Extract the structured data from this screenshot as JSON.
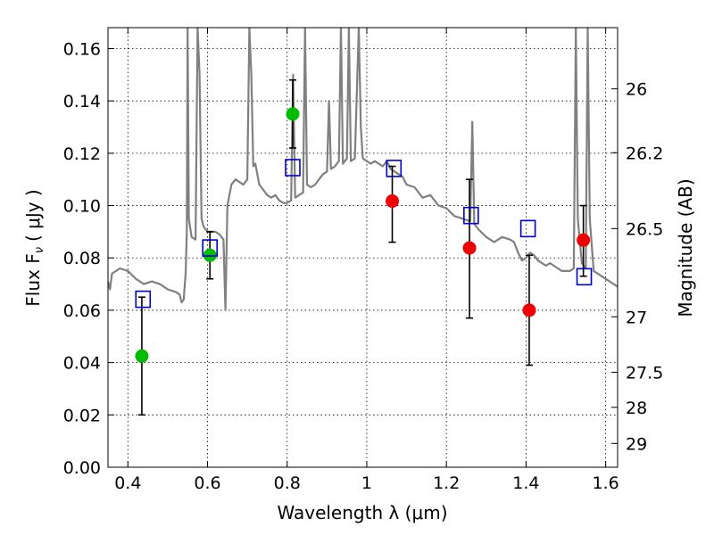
{
  "chart_data": {
    "type": "scatter",
    "xlabel": "Wavelength  λ (μm)",
    "ylabel": "Flux  F",
    "ylabel_sub": "ν",
    "ylabel_unit": "(  μJy )",
    "ylabel_right": "Magnitude (AB)",
    "xlim": [
      0.35,
      1.63
    ],
    "ylim": [
      0.0,
      0.168
    ],
    "grid": true,
    "x_ticks": [
      0.4,
      0.6,
      0.8,
      1.0,
      1.2,
      1.4,
      1.6
    ],
    "x_tick_labels": [
      "0.4",
      "0.6",
      "0.8",
      "1",
      "1.2",
      "1.4",
      "1.6"
    ],
    "y_ticks": [
      0.0,
      0.02,
      0.04,
      0.06,
      0.08,
      0.1,
      0.12,
      0.14,
      0.16
    ],
    "y_tick_labels": [
      "0.00",
      "0.02",
      "0.04",
      "0.06",
      "0.08",
      "0.10",
      "0.12",
      "0.14",
      "0.16"
    ],
    "right_ticks": [
      {
        "label": "26",
        "flux": 0.1446
      },
      {
        "label": "26.2",
        "flux": 0.1202
      },
      {
        "label": "26.5",
        "flux": 0.0912
      },
      {
        "label": "27",
        "flux": 0.0575
      },
      {
        "label": "27.5",
        "flux": 0.0363
      },
      {
        "label": "28",
        "flux": 0.0229
      },
      {
        "label": "29",
        "flux": 0.0091
      }
    ],
    "colors": {
      "spectrum": "#808080",
      "green": "#00bb00",
      "red": "#ee0000",
      "model_box": "#0000cc",
      "errorbar": "#000000"
    },
    "series": [
      {
        "type": "errorbar",
        "color": "green",
        "points": [
          {
            "x": 0.435,
            "y": 0.0425,
            "lo": 0.02,
            "hi": 0.065
          },
          {
            "x": 0.606,
            "y": 0.081,
            "lo": 0.072,
            "hi": 0.09
          },
          {
            "x": 0.814,
            "y": 0.135,
            "lo": 0.122,
            "hi": 0.148
          }
        ]
      },
      {
        "type": "errorbar",
        "color": "red",
        "points": [
          {
            "x": 1.064,
            "y": 0.1017,
            "lo": 0.086,
            "hi": 0.115
          },
          {
            "x": 1.258,
            "y": 0.0838,
            "lo": 0.057,
            "hi": 0.11
          },
          {
            "x": 1.408,
            "y": 0.06,
            "lo": 0.039,
            "hi": 0.081
          },
          {
            "x": 1.544,
            "y": 0.0868,
            "lo": 0.073,
            "hi": 0.1
          }
        ]
      },
      {
        "type": "model_photometry",
        "color": "model_box",
        "points": [
          {
            "x": 0.438,
            "y": 0.0642
          },
          {
            "x": 0.606,
            "y": 0.0838
          },
          {
            "x": 0.814,
            "y": 0.1145
          },
          {
            "x": 1.068,
            "y": 0.1142
          },
          {
            "x": 1.262,
            "y": 0.0962
          },
          {
            "x": 1.405,
            "y": 0.0912
          },
          {
            "x": 1.546,
            "y": 0.0728
          }
        ]
      },
      {
        "type": "spectrum",
        "color": "spectrum",
        "points": [
          [
            0.35,
            0.071
          ],
          [
            0.355,
            0.068
          ],
          [
            0.36,
            0.074
          ],
          [
            0.38,
            0.076
          ],
          [
            0.4,
            0.075
          ],
          [
            0.42,
            0.072
          ],
          [
            0.44,
            0.07
          ],
          [
            0.46,
            0.071
          ],
          [
            0.48,
            0.07
          ],
          [
            0.5,
            0.068
          ],
          [
            0.52,
            0.067
          ],
          [
            0.53,
            0.066
          ],
          [
            0.535,
            0.063
          ],
          [
            0.54,
            0.064
          ],
          [
            0.545,
            0.074
          ],
          [
            0.548,
            0.09
          ],
          [
            0.55,
            0.168
          ],
          [
            0.553,
            0.095
          ],
          [
            0.56,
            0.088
          ],
          [
            0.57,
            0.087
          ],
          [
            0.575,
            0.168
          ],
          [
            0.58,
            0.15
          ],
          [
            0.585,
            0.095
          ],
          [
            0.59,
            0.092
          ],
          [
            0.6,
            0.09
          ],
          [
            0.62,
            0.09
          ],
          [
            0.63,
            0.089
          ],
          [
            0.64,
            0.087
          ],
          [
            0.645,
            0.06
          ],
          [
            0.65,
            0.1
          ],
          [
            0.66,
            0.108
          ],
          [
            0.67,
            0.11
          ],
          [
            0.68,
            0.109
          ],
          [
            0.69,
            0.108
          ],
          [
            0.7,
            0.11
          ],
          [
            0.705,
            0.168
          ],
          [
            0.71,
            0.15
          ],
          [
            0.715,
            0.115
          ],
          [
            0.72,
            0.116
          ],
          [
            0.73,
            0.108
          ],
          [
            0.74,
            0.106
          ],
          [
            0.75,
            0.104
          ],
          [
            0.76,
            0.103
          ],
          [
            0.77,
            0.104
          ],
          [
            0.78,
            0.102
          ],
          [
            0.79,
            0.101
          ],
          [
            0.8,
            0.101
          ],
          [
            0.81,
            0.102
          ],
          [
            0.815,
            0.15
          ],
          [
            0.82,
            0.103
          ],
          [
            0.83,
            0.104
          ],
          [
            0.84,
            0.105
          ],
          [
            0.845,
            0.168
          ],
          [
            0.85,
            0.108
          ],
          [
            0.86,
            0.107
          ],
          [
            0.87,
            0.108
          ],
          [
            0.88,
            0.11
          ],
          [
            0.89,
            0.112
          ],
          [
            0.9,
            0.113
          ],
          [
            0.905,
            0.14
          ],
          [
            0.91,
            0.114
          ],
          [
            0.92,
            0.115
          ],
          [
            0.93,
            0.117
          ],
          [
            0.935,
            0.168
          ],
          [
            0.94,
            0.116
          ],
          [
            0.95,
            0.118
          ],
          [
            0.955,
            0.168
          ],
          [
            0.96,
            0.117
          ],
          [
            0.97,
            0.118
          ],
          [
            0.98,
            0.168
          ],
          [
            0.985,
            0.13
          ],
          [
            0.99,
            0.118
          ],
          [
            1.0,
            0.117
          ],
          [
            1.01,
            0.116
          ],
          [
            1.02,
            0.117
          ],
          [
            1.03,
            0.116
          ],
          [
            1.04,
            0.115
          ],
          [
            1.05,
            0.117
          ],
          [
            1.06,
            0.114
          ],
          [
            1.07,
            0.113
          ],
          [
            1.08,
            0.112
          ],
          [
            1.09,
            0.111
          ],
          [
            1.1,
            0.108
          ],
          [
            1.12,
            0.107
          ],
          [
            1.14,
            0.103
          ],
          [
            1.16,
            0.104
          ],
          [
            1.17,
            0.102
          ],
          [
            1.18,
            0.1
          ],
          [
            1.2,
            0.099
          ],
          [
            1.22,
            0.096
          ],
          [
            1.24,
            0.095
          ],
          [
            1.26,
            0.094
          ],
          [
            1.265,
            0.132
          ],
          [
            1.27,
            0.093
          ],
          [
            1.28,
            0.091
          ],
          [
            1.3,
            0.088
          ],
          [
            1.32,
            0.086
          ],
          [
            1.34,
            0.088
          ],
          [
            1.36,
            0.087
          ],
          [
            1.37,
            0.086
          ],
          [
            1.38,
            0.082
          ],
          [
            1.39,
            0.079
          ],
          [
            1.4,
            0.08
          ],
          [
            1.41,
            0.082
          ],
          [
            1.42,
            0.081
          ],
          [
            1.43,
            0.079
          ],
          [
            1.44,
            0.078
          ],
          [
            1.45,
            0.077
          ],
          [
            1.46,
            0.078
          ],
          [
            1.47,
            0.077
          ],
          [
            1.48,
            0.076
          ],
          [
            1.49,
            0.075
          ],
          [
            1.5,
            0.075
          ],
          [
            1.51,
            0.075
          ],
          [
            1.52,
            0.076
          ],
          [
            1.525,
            0.168
          ],
          [
            1.53,
            0.095
          ],
          [
            1.54,
            0.078
          ],
          [
            1.55,
            0.076
          ],
          [
            1.555,
            0.168
          ],
          [
            1.56,
            0.095
          ],
          [
            1.57,
            0.075
          ],
          [
            1.58,
            0.074
          ],
          [
            1.59,
            0.073
          ],
          [
            1.6,
            0.072
          ],
          [
            1.61,
            0.071
          ],
          [
            1.62,
            0.07
          ],
          [
            1.63,
            0.069
          ]
        ]
      }
    ]
  }
}
